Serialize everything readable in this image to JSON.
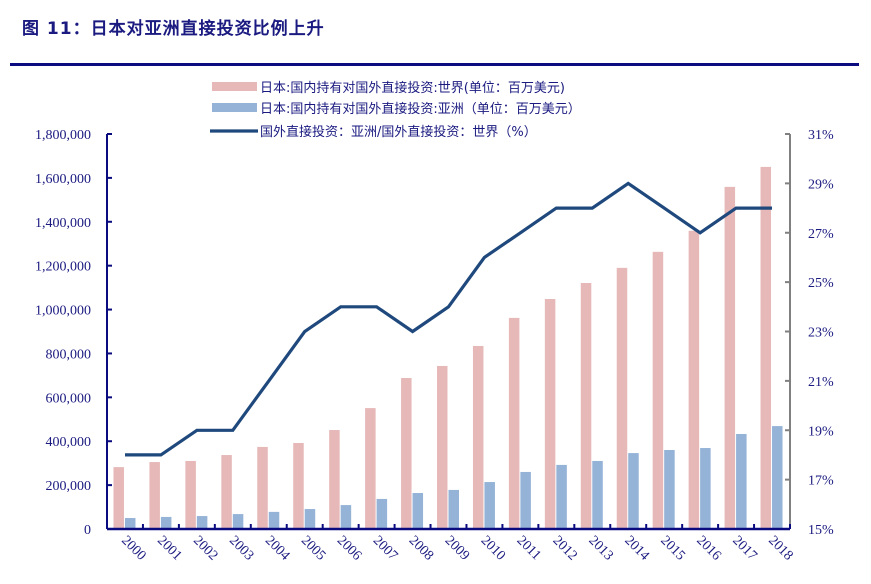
{
  "header": {
    "title": "图 11：日本对亚洲直接投资比例上升"
  },
  "colors": {
    "world_bar": "#e6b8b8",
    "asia_bar": "#95b3d7",
    "line": "#1f497d",
    "axis_left": "#0b0b80",
    "axis_right": "#808080",
    "text": "#1a1a80"
  },
  "chart_data": {
    "type": "bar",
    "title": "日本对亚洲直接投资比例上升",
    "xlabel": "",
    "ylabel": "",
    "categories": [
      "2000",
      "2001",
      "2002",
      "2003",
      "2004",
      "2005",
      "2006",
      "2007",
      "2008",
      "2009",
      "2010",
      "2011",
      "2012",
      "2013",
      "2014",
      "2015",
      "2016",
      "2017",
      "2018"
    ],
    "series": [
      {
        "name": "日本:国内持有对国外直接投资:世界(单位：百万美元)",
        "type": "bar",
        "axis": "left",
        "values": [
          282000,
          305000,
          310000,
          337000,
          374000,
          392000,
          451000,
          551000,
          688000,
          743000,
          834000,
          962000,
          1048000,
          1121000,
          1190000,
          1263000,
          1359000,
          1559000,
          1650000
        ]
      },
      {
        "name": "日本:国内持有对国外直接投资:亚洲（单位：百万美元）",
        "type": "bar",
        "axis": "left",
        "values": [
          50000,
          55000,
          59000,
          68000,
          78000,
          91000,
          109000,
          137000,
          164000,
          178000,
          214000,
          260000,
          292000,
          310000,
          346000,
          360000,
          369000,
          433000,
          469000
        ]
      },
      {
        "name": "国外直接投资：亚洲/国外直接投资：世界（%）",
        "type": "line",
        "axis": "right",
        "values": [
          18,
          18,
          19,
          19,
          21,
          23,
          24,
          24,
          23,
          24,
          26,
          27,
          28,
          28,
          29,
          28,
          27,
          28,
          28
        ]
      }
    ],
    "ylim": [
      0,
      1800000
    ],
    "y_ticks": [
      "0",
      "200,000",
      "400,000",
      "600,000",
      "800,000",
      "1,000,000",
      "1,200,000",
      "1,400,000",
      "1,600,000",
      "1,800,000"
    ],
    "y2lim": [
      15,
      31
    ],
    "y2_ticks": [
      "15%",
      "17%",
      "19%",
      "21%",
      "23%",
      "25%",
      "27%",
      "29%",
      "31%"
    ],
    "grid": false,
    "legend_position": "top-center"
  }
}
